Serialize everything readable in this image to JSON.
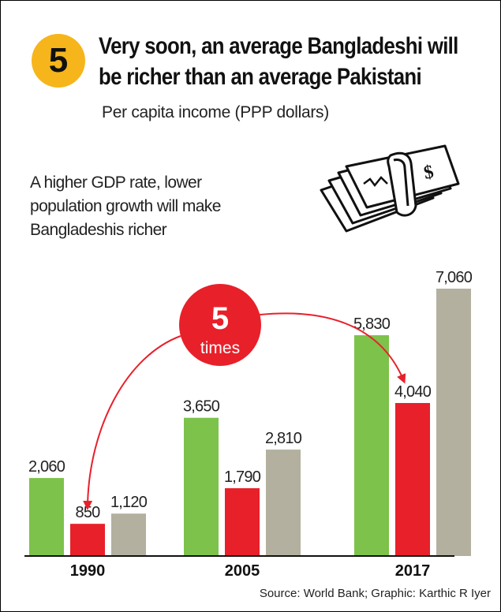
{
  "header": {
    "badge_number": "5",
    "title_line1": "Very soon, an average Bangladeshi will",
    "title_line2": "be richer than an average Pakistani",
    "subtitle": "Per capita income (PPP dollars)"
  },
  "note": {
    "line1": "A higher GDP rate, lower",
    "line2": "population growth will make",
    "line3": "Bangladeshis richer"
  },
  "callout": {
    "number": "5",
    "label": "times"
  },
  "source": "Source: World Bank; Graphic: Karthic R Iyer",
  "money_icon": "banknotes-with-dollar-icon",
  "colors": {
    "series_a": "#7dc24b",
    "series_b": "#e8202a",
    "series_c": "#b3b09f",
    "badge": "#f6b51a",
    "callout": "#e8202a"
  },
  "chart_data": {
    "type": "bar",
    "categories": [
      "1990",
      "2005",
      "2017"
    ],
    "series": [
      {
        "values": [
          2060,
          3650,
          5830
        ],
        "labels": [
          "2,060",
          "3,650",
          "5,830"
        ]
      },
      {
        "values": [
          850,
          1790,
          4040
        ],
        "labels": [
          "850",
          "1,790",
          "4,040"
        ]
      },
      {
        "values": [
          1120,
          2810,
          7060
        ],
        "labels": [
          "1,120",
          "2,810",
          "7,060"
        ]
      }
    ],
    "ylim": [
      0,
      7060
    ],
    "grid": false,
    "legend": "none"
  }
}
